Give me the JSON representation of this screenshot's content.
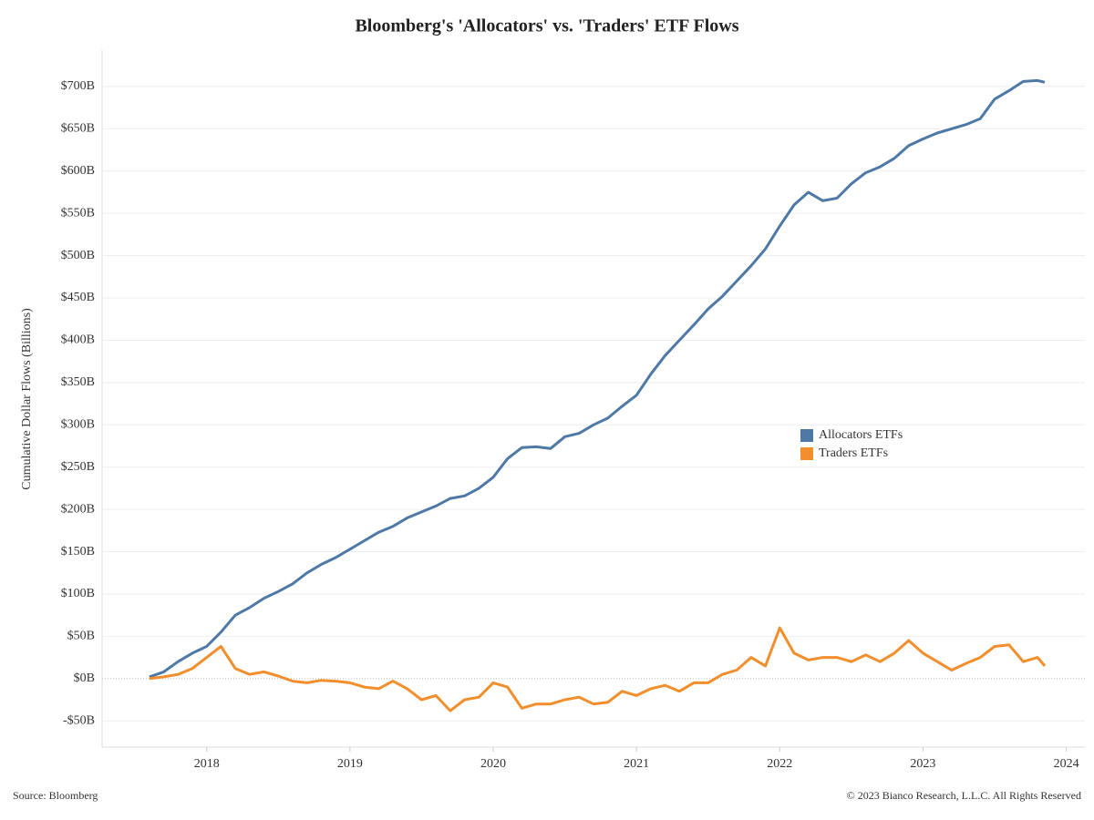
{
  "chart_data": {
    "type": "line",
    "title": "Bloomberg's 'Allocators' vs. 'Traders' ETF Flows",
    "y_label": "Cumulative Dollar Flows (Billions)",
    "source": "Source: Bloomberg",
    "copyright": "© 2023 Bianco Research, L.L.C. All Rights Reserved",
    "x": [
      2017.6,
      2017.7,
      2017.8,
      2017.9,
      2018.0,
      2018.1,
      2018.2,
      2018.3,
      2018.4,
      2018.5,
      2018.6,
      2018.7,
      2018.8,
      2018.9,
      2019.0,
      2019.1,
      2019.2,
      2019.3,
      2019.4,
      2019.5,
      2019.6,
      2019.7,
      2019.8,
      2019.9,
      2020.0,
      2020.1,
      2020.2,
      2020.3,
      2020.4,
      2020.5,
      2020.6,
      2020.7,
      2020.8,
      2020.9,
      2021.0,
      2021.1,
      2021.2,
      2021.3,
      2021.4,
      2021.5,
      2021.6,
      2021.7,
      2021.8,
      2021.9,
      2022.0,
      2022.1,
      2022.2,
      2022.3,
      2022.4,
      2022.5,
      2022.6,
      2022.7,
      2022.8,
      2022.9,
      2023.0,
      2023.1,
      2023.2,
      2023.3,
      2023.4,
      2023.5,
      2023.6,
      2023.7,
      2023.8,
      2023.85
    ],
    "series": [
      {
        "name": "Allocators ETFs",
        "color": "#4e79a7",
        "values": [
          2,
          8,
          20,
          30,
          38,
          55,
          75,
          84,
          95,
          103,
          112,
          125,
          135,
          143,
          153,
          163,
          173,
          180,
          190,
          197,
          204,
          213,
          216,
          225,
          238,
          260,
          273,
          274,
          272,
          286,
          290,
          300,
          308,
          322,
          335,
          360,
          382,
          400,
          418,
          437,
          452,
          470,
          488,
          508,
          535,
          560,
          575,
          565,
          568,
          585,
          598,
          605,
          615,
          630,
          638,
          645,
          650,
          655,
          662,
          685,
          695,
          706,
          707,
          705
        ]
      },
      {
        "name": "Traders ETFs",
        "color": "#f28e2b",
        "values": [
          0,
          2,
          5,
          12,
          25,
          38,
          12,
          5,
          8,
          3,
          -3,
          -5,
          -2,
          -3,
          -5,
          -10,
          -12,
          -3,
          -12,
          -25,
          -20,
          -38,
          -25,
          -22,
          -5,
          -10,
          -35,
          -30,
          -30,
          -25,
          -22,
          -30,
          -28,
          -15,
          -20,
          -12,
          -8,
          -15,
          -5,
          -5,
          5,
          10,
          25,
          15,
          60,
          30,
          22,
          25,
          25,
          20,
          28,
          20,
          30,
          45,
          30,
          20,
          10,
          18,
          25,
          38,
          40,
          20,
          25,
          15
        ]
      }
    ],
    "xlim": [
      2017.27,
      2024.13
    ],
    "xticks": [
      2018,
      2019,
      2020,
      2021,
      2022,
      2023,
      2024
    ],
    "ylim": [
      -81,
      743
    ],
    "yticks": [
      {
        "value": -50,
        "label": "-$50B"
      },
      {
        "value": 0,
        "label": "$0B"
      },
      {
        "value": 50,
        "label": "$50B"
      },
      {
        "value": 100,
        "label": "$100B"
      },
      {
        "value": 150,
        "label": "$150B"
      },
      {
        "value": 200,
        "label": "$200B"
      },
      {
        "value": 250,
        "label": "$250B"
      },
      {
        "value": 300,
        "label": "$300B"
      },
      {
        "value": 350,
        "label": "$350B"
      },
      {
        "value": 400,
        "label": "$400B"
      },
      {
        "value": 450,
        "label": "$450B"
      },
      {
        "value": 500,
        "label": "$500B"
      },
      {
        "value": 550,
        "label": "$550B"
      },
      {
        "value": 600,
        "label": "$600B"
      },
      {
        "value": 650,
        "label": "$650B"
      },
      {
        "value": 700,
        "label": "$700B"
      }
    ],
    "grid": true,
    "legend_position": "center-right"
  }
}
